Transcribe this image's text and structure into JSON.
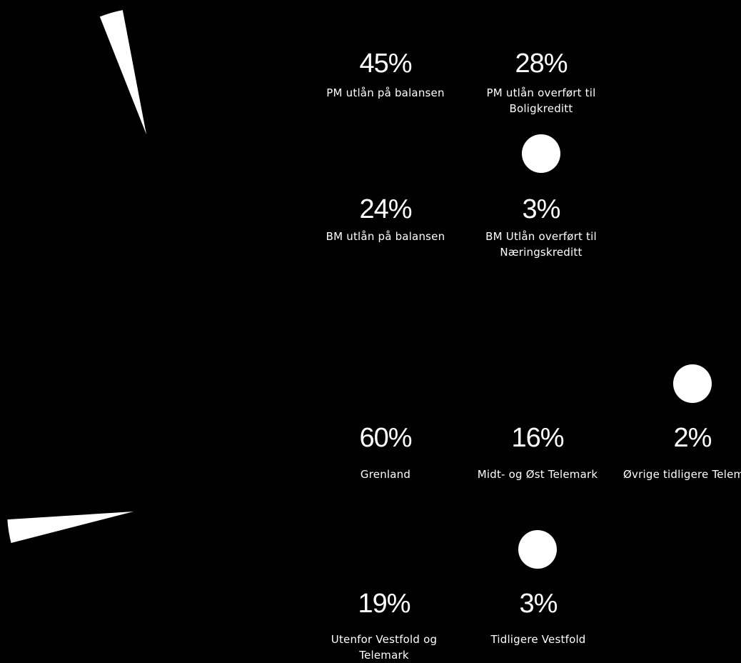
{
  "chart_data": [
    {
      "type": "pie",
      "title": "",
      "colors": [
        "#000000",
        "#000000",
        "#000000",
        "#ffffff"
      ],
      "slices": [
        {
          "value": 45,
          "percent_label": "45%",
          "label": "PM utlån på balansen"
        },
        {
          "value": 28,
          "percent_label": "28%",
          "label": "PM utlån overført til Boligkreditt"
        },
        {
          "value": 24,
          "percent_label": "24%",
          "label": "BM utlån på balansen"
        },
        {
          "value": 3,
          "percent_label": "3%",
          "label": "BM Utlån overført til Næringskreditt"
        }
      ]
    },
    {
      "type": "pie",
      "title": "",
      "colors": [
        "#000000",
        "#000000",
        "#000000",
        "#000000",
        "#ffffff"
      ],
      "slices": [
        {
          "value": 60,
          "percent_label": "60%",
          "label": "Grenland"
        },
        {
          "value": 16,
          "percent_label": "16%",
          "label": "Midt- og Øst Telemark"
        },
        {
          "value": 2,
          "percent_label": "2%",
          "label": "Øvrige tidligere Telemark"
        },
        {
          "value": 19,
          "percent_label": "19%",
          "label": "Utenfor Vestfold og Telemark"
        },
        {
          "value": 3,
          "percent_label": "3%",
          "label": "Tidligere Vestfold"
        }
      ]
    }
  ]
}
